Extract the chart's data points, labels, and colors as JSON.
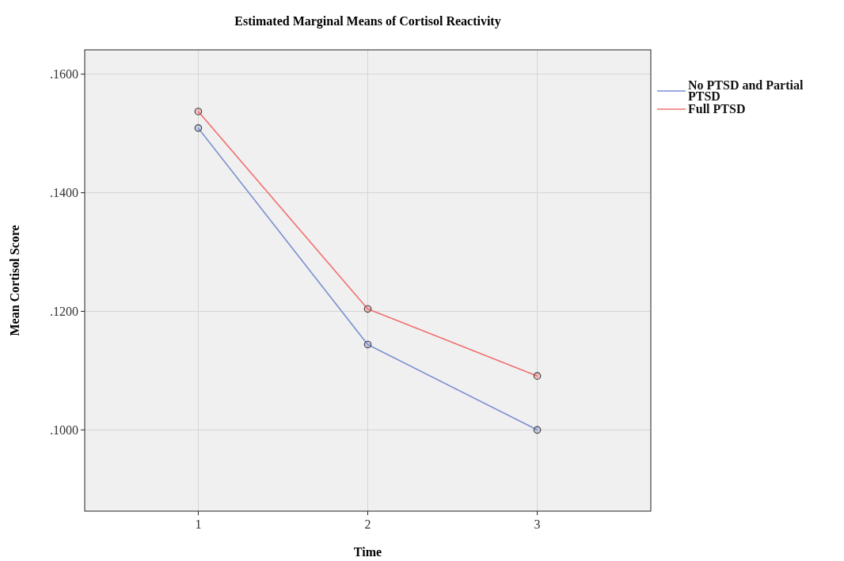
{
  "chart_data": {
    "type": "line",
    "title": "Estimated Marginal Means of Cortisol Reactivity",
    "xlabel": "Time",
    "ylabel": "Mean Cortisol Score",
    "x": [
      1,
      2,
      3
    ],
    "xlim": [
      0.33,
      3.67
    ],
    "xticks": [
      1,
      2,
      3
    ],
    "ylim": [
      0.0863,
      0.1641
    ],
    "yticks": [
      {
        "value": 0.1,
        "label": ".1000"
      },
      {
        "value": 0.12,
        "label": ".1200"
      },
      {
        "value": 0.14,
        "label": ".1400"
      },
      {
        "value": 0.16,
        "label": ".1600"
      }
    ],
    "grid": true,
    "legend": "top right",
    "marker": "circle",
    "line_style": "solid",
    "series": [
      {
        "name": "No PTSD and Partial PTSD",
        "color": "#7b8fd0",
        "values": [
          0.1509,
          0.1144,
          0.1
        ]
      },
      {
        "name": "Full PTSD",
        "color": "#f07070",
        "values": [
          0.1537,
          0.1204,
          0.1091
        ]
      }
    ]
  }
}
